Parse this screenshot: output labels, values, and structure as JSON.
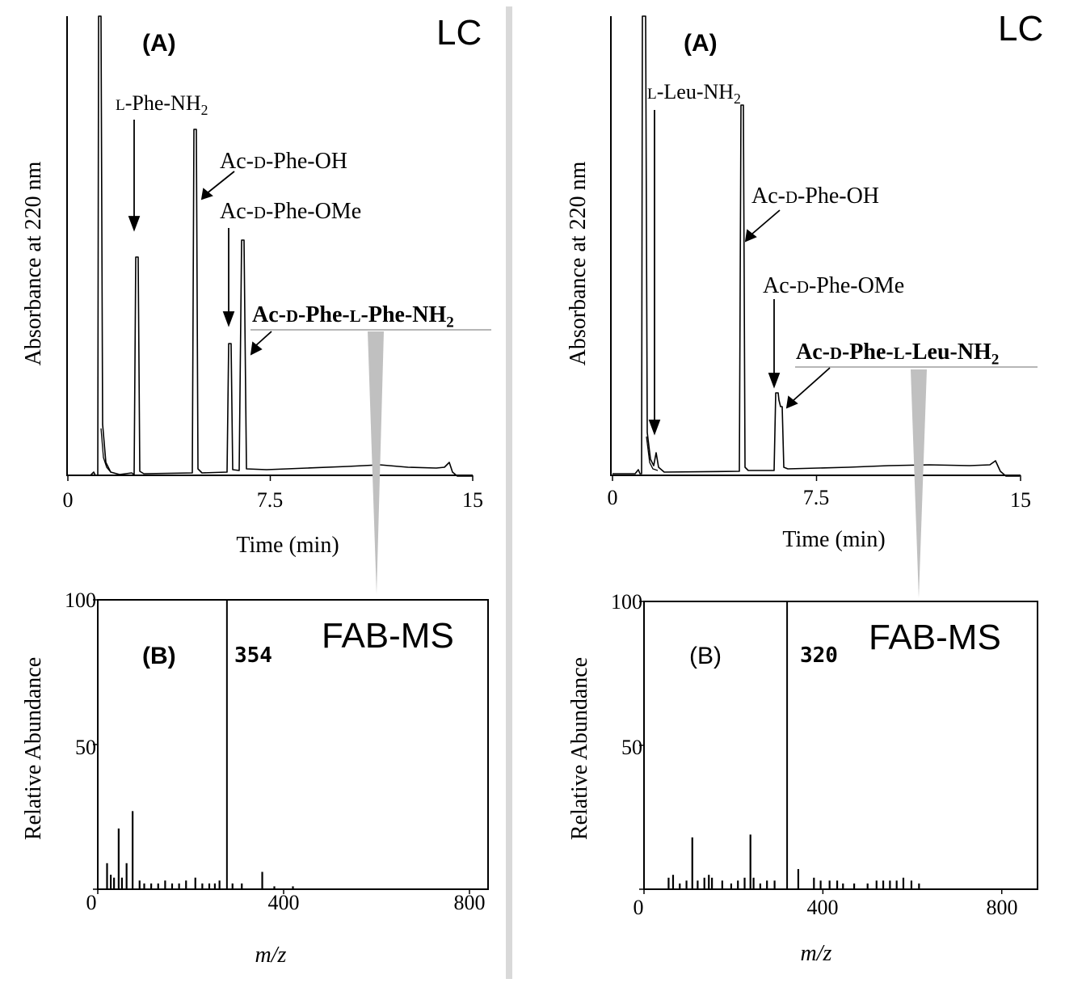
{
  "colors": {
    "trace": "#000000",
    "callout": "#c0c0c0",
    "divider": "#d9d9d9"
  },
  "panels": [
    {
      "lc": {
        "corner_label": "LC",
        "panel_label": "(A)",
        "ylabel": "Absorbance at 220 nm",
        "xlabel": "Time (min)",
        "xticks": [
          "0",
          "7.5",
          "15"
        ],
        "xlim": [
          0,
          15
        ],
        "peaks_min": [
          1.15,
          2.55,
          4.75,
          5.95,
          6.45,
          14.1
        ],
        "annotations": [
          {
            "parts": [
              [
                "L",
                "sc"
              ],
              [
                "-Phe-NH",
                ""
              ],
              [
                "2",
                "sub"
              ]
            ],
            "bold": false
          },
          {
            "parts": [
              [
                "Ac-",
                ""
              ],
              [
                "D",
                "sc"
              ],
              [
                "-Phe-OH",
                ""
              ]
            ],
            "bold": false
          },
          {
            "parts": [
              [
                "Ac-",
                ""
              ],
              [
                "D",
                "sc"
              ],
              [
                "-Phe-OMe",
                ""
              ]
            ],
            "bold": false
          },
          {
            "parts": [
              [
                "Ac-",
                ""
              ],
              [
                "D",
                "sc"
              ],
              [
                "-Phe-",
                ""
              ],
              [
                "L",
                "sc"
              ],
              [
                "-Phe-NH",
                ""
              ],
              [
                "2",
                "sub"
              ]
            ],
            "bold": true
          }
        ]
      },
      "ms": {
        "corner_label": "FAB-MS",
        "panel_label": "(B)",
        "ylabel": "Relative Abundance",
        "xlabel": "m/z",
        "xticks": [
          "0",
          "400",
          "800"
        ],
        "yticks": [
          "0",
          "50",
          "100"
        ],
        "xlim": [
          0,
          840
        ],
        "ylim": [
          0,
          100
        ],
        "peak_label": "354",
        "bars": [
          [
            20,
            9
          ],
          [
            28,
            5
          ],
          [
            35,
            4
          ],
          [
            45,
            21
          ],
          [
            52,
            4
          ],
          [
            62,
            9
          ],
          [
            75,
            27
          ],
          [
            90,
            3
          ],
          [
            100,
            2
          ],
          [
            115,
            2
          ],
          [
            130,
            2
          ],
          [
            145,
            3
          ],
          [
            160,
            2
          ],
          [
            175,
            2
          ],
          [
            190,
            3
          ],
          [
            210,
            4
          ],
          [
            225,
            2
          ],
          [
            240,
            2
          ],
          [
            252,
            2
          ],
          [
            262,
            3
          ],
          [
            278,
            100
          ],
          [
            290,
            2
          ],
          [
            310,
            2
          ],
          [
            354,
            6
          ],
          [
            380,
            1
          ],
          [
            420,
            1
          ]
        ]
      }
    },
    {
      "lc": {
        "corner_label": "LC",
        "panel_label": "(A)",
        "ylabel": "Absorbance at 220 nm",
        "xlabel": "Time (min)",
        "xticks": [
          "0",
          "7.5",
          "15"
        ],
        "xlim": [
          0,
          15
        ],
        "peaks_min": [
          1.15,
          1.65,
          4.8,
          6.0,
          6.15,
          14.1
        ],
        "annotations": [
          {
            "parts": [
              [
                "L",
                "sc"
              ],
              [
                "-Leu-NH",
                ""
              ],
              [
                "2",
                "sub"
              ]
            ],
            "bold": false
          },
          {
            "parts": [
              [
                "Ac-",
                ""
              ],
              [
                "D",
                "sc"
              ],
              [
                "-Phe-OH",
                ""
              ]
            ],
            "bold": false
          },
          {
            "parts": [
              [
                "Ac-",
                ""
              ],
              [
                "D",
                "sc"
              ],
              [
                "-Phe-OMe",
                ""
              ]
            ],
            "bold": false
          },
          {
            "parts": [
              [
                "Ac-",
                ""
              ],
              [
                "D",
                "sc"
              ],
              [
                "-Phe-",
                ""
              ],
              [
                "L",
                "sc"
              ],
              [
                "-Leu-NH",
                ""
              ],
              [
                "2",
                "sub"
              ]
            ],
            "bold": true
          }
        ]
      },
      "ms": {
        "corner_label": "FAB-MS",
        "panel_label": "(B)",
        "ylabel": "Relative Abundance",
        "xlabel": "m/z",
        "xticks": [
          "0",
          "400",
          "800"
        ],
        "yticks": [
          "0",
          "50",
          "100"
        ],
        "xlim": [
          0,
          880
        ],
        "ylim": [
          0,
          100
        ],
        "peak_label": "320",
        "bars": [
          [
            55,
            4
          ],
          [
            65,
            5
          ],
          [
            80,
            2
          ],
          [
            95,
            3
          ],
          [
            108,
            18
          ],
          [
            120,
            3
          ],
          [
            135,
            4
          ],
          [
            145,
            5
          ],
          [
            152,
            4
          ],
          [
            175,
            3
          ],
          [
            195,
            2
          ],
          [
            210,
            3
          ],
          [
            225,
            4
          ],
          [
            238,
            19
          ],
          [
            245,
            4
          ],
          [
            260,
            2
          ],
          [
            275,
            3
          ],
          [
            292,
            3
          ],
          [
            320,
            100
          ],
          [
            345,
            7
          ],
          [
            380,
            4
          ],
          [
            395,
            3
          ],
          [
            415,
            3
          ],
          [
            432,
            3
          ],
          [
            445,
            2
          ],
          [
            470,
            2
          ],
          [
            500,
            2
          ],
          [
            520,
            3
          ],
          [
            535,
            3
          ],
          [
            550,
            3
          ],
          [
            565,
            3
          ],
          [
            580,
            4
          ],
          [
            598,
            3
          ],
          [
            615,
            2
          ]
        ]
      }
    }
  ]
}
